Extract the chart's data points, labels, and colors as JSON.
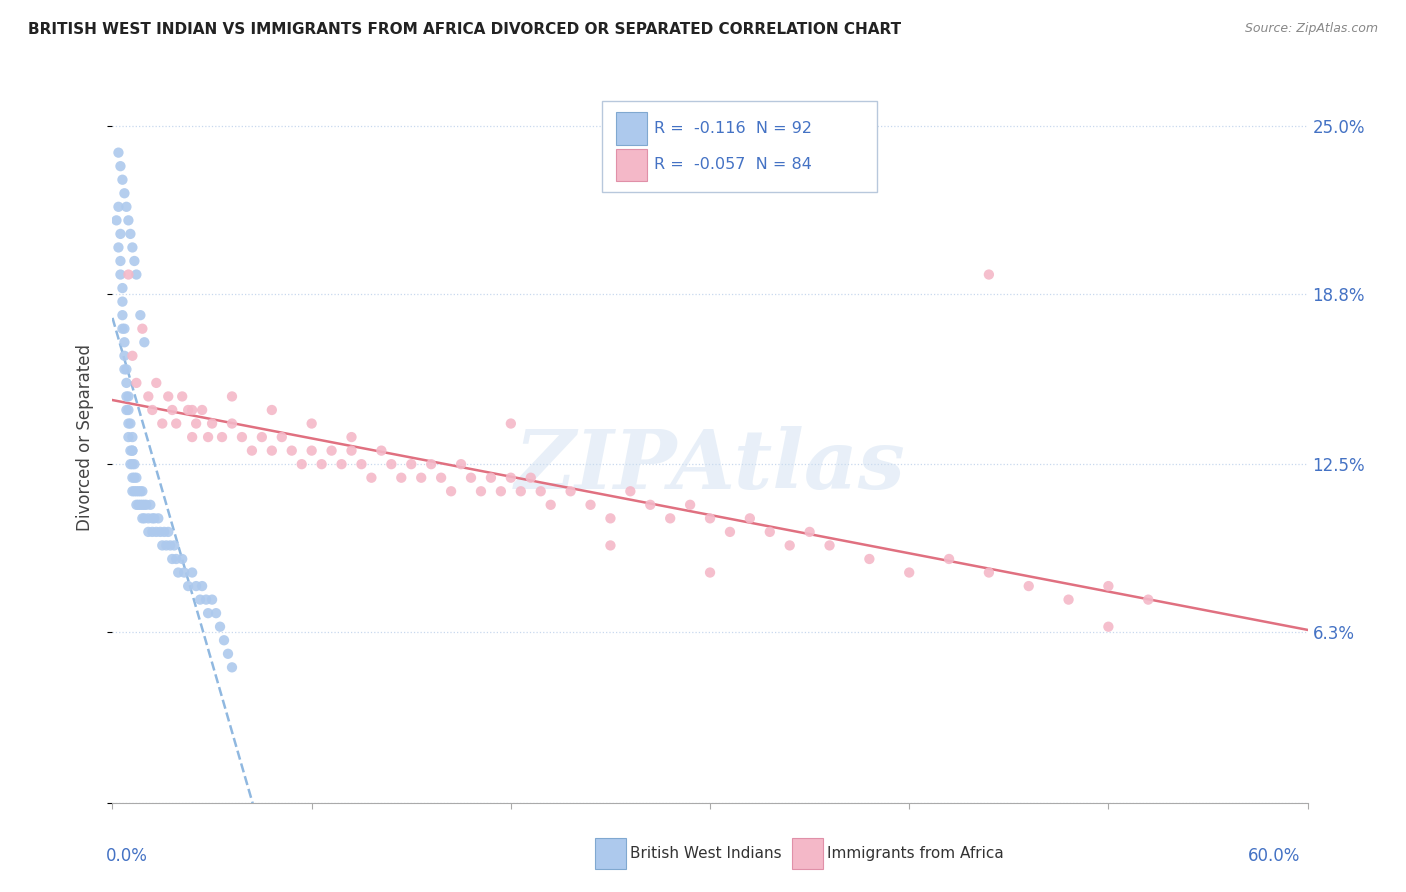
{
  "title": "BRITISH WEST INDIAN VS IMMIGRANTS FROM AFRICA DIVORCED OR SEPARATED CORRELATION CHART",
  "source": "Source: ZipAtlas.com",
  "ylabel": "Divorced or Separated",
  "yticks": [
    0.0,
    0.063,
    0.125,
    0.188,
    0.25
  ],
  "ytick_labels": [
    "",
    "6.3%",
    "12.5%",
    "18.8%",
    "25.0%"
  ],
  "xlim": [
    0.0,
    0.6
  ],
  "ylim": [
    0.0,
    0.27
  ],
  "watermark": "ZIPAtlas",
  "blue_R": "-0.116",
  "blue_N": "92",
  "pink_R": "-0.057",
  "pink_N": "84",
  "blue_color": "#adc9ed",
  "pink_color": "#f4b8c8",
  "legend_label_blue": "British West Indians",
  "legend_label_pink": "Immigrants from Africa",
  "blue_scatter_x": [
    0.002,
    0.003,
    0.003,
    0.004,
    0.004,
    0.004,
    0.005,
    0.005,
    0.005,
    0.005,
    0.006,
    0.006,
    0.006,
    0.006,
    0.007,
    0.007,
    0.007,
    0.007,
    0.008,
    0.008,
    0.008,
    0.008,
    0.009,
    0.009,
    0.009,
    0.01,
    0.01,
    0.01,
    0.01,
    0.01,
    0.01,
    0.011,
    0.011,
    0.011,
    0.012,
    0.012,
    0.012,
    0.013,
    0.013,
    0.014,
    0.014,
    0.015,
    0.015,
    0.015,
    0.016,
    0.016,
    0.017,
    0.018,
    0.018,
    0.019,
    0.02,
    0.02,
    0.021,
    0.022,
    0.023,
    0.024,
    0.025,
    0.026,
    0.027,
    0.028,
    0.029,
    0.03,
    0.031,
    0.032,
    0.033,
    0.035,
    0.036,
    0.038,
    0.04,
    0.042,
    0.044,
    0.045,
    0.047,
    0.048,
    0.05,
    0.052,
    0.054,
    0.056,
    0.058,
    0.06,
    0.003,
    0.004,
    0.005,
    0.006,
    0.007,
    0.008,
    0.009,
    0.01,
    0.011,
    0.012,
    0.014,
    0.016
  ],
  "blue_scatter_y": [
    0.215,
    0.22,
    0.205,
    0.21,
    0.2,
    0.195,
    0.19,
    0.18,
    0.175,
    0.185,
    0.17,
    0.165,
    0.16,
    0.175,
    0.155,
    0.15,
    0.16,
    0.145,
    0.14,
    0.15,
    0.135,
    0.145,
    0.13,
    0.14,
    0.125,
    0.135,
    0.13,
    0.125,
    0.12,
    0.13,
    0.115,
    0.12,
    0.125,
    0.115,
    0.12,
    0.115,
    0.11,
    0.115,
    0.11,
    0.115,
    0.11,
    0.115,
    0.11,
    0.105,
    0.11,
    0.105,
    0.11,
    0.105,
    0.1,
    0.11,
    0.105,
    0.1,
    0.105,
    0.1,
    0.105,
    0.1,
    0.095,
    0.1,
    0.095,
    0.1,
    0.095,
    0.09,
    0.095,
    0.09,
    0.085,
    0.09,
    0.085,
    0.08,
    0.085,
    0.08,
    0.075,
    0.08,
    0.075,
    0.07,
    0.075,
    0.07,
    0.065,
    0.06,
    0.055,
    0.05,
    0.24,
    0.235,
    0.23,
    0.225,
    0.22,
    0.215,
    0.21,
    0.205,
    0.2,
    0.195,
    0.18,
    0.17
  ],
  "pink_scatter_x": [
    0.008,
    0.01,
    0.012,
    0.015,
    0.018,
    0.02,
    0.022,
    0.025,
    0.028,
    0.03,
    0.032,
    0.035,
    0.038,
    0.04,
    0.042,
    0.045,
    0.048,
    0.05,
    0.055,
    0.06,
    0.065,
    0.07,
    0.075,
    0.08,
    0.085,
    0.09,
    0.095,
    0.1,
    0.105,
    0.11,
    0.115,
    0.12,
    0.125,
    0.13,
    0.135,
    0.14,
    0.145,
    0.15,
    0.155,
    0.16,
    0.165,
    0.17,
    0.175,
    0.18,
    0.185,
    0.19,
    0.195,
    0.2,
    0.205,
    0.21,
    0.215,
    0.22,
    0.23,
    0.24,
    0.25,
    0.26,
    0.27,
    0.28,
    0.29,
    0.3,
    0.31,
    0.32,
    0.33,
    0.34,
    0.35,
    0.36,
    0.38,
    0.4,
    0.42,
    0.44,
    0.46,
    0.48,
    0.5,
    0.52,
    0.04,
    0.06,
    0.08,
    0.1,
    0.12,
    0.2,
    0.25,
    0.3,
    0.5,
    0.44
  ],
  "pink_scatter_y": [
    0.195,
    0.165,
    0.155,
    0.175,
    0.15,
    0.145,
    0.155,
    0.14,
    0.15,
    0.145,
    0.14,
    0.15,
    0.145,
    0.135,
    0.14,
    0.145,
    0.135,
    0.14,
    0.135,
    0.14,
    0.135,
    0.13,
    0.135,
    0.13,
    0.135,
    0.13,
    0.125,
    0.13,
    0.125,
    0.13,
    0.125,
    0.13,
    0.125,
    0.12,
    0.13,
    0.125,
    0.12,
    0.125,
    0.12,
    0.125,
    0.12,
    0.115,
    0.125,
    0.12,
    0.115,
    0.12,
    0.115,
    0.12,
    0.115,
    0.12,
    0.115,
    0.11,
    0.115,
    0.11,
    0.105,
    0.115,
    0.11,
    0.105,
    0.11,
    0.105,
    0.1,
    0.105,
    0.1,
    0.095,
    0.1,
    0.095,
    0.09,
    0.085,
    0.09,
    0.085,
    0.08,
    0.075,
    0.08,
    0.075,
    0.145,
    0.15,
    0.145,
    0.14,
    0.135,
    0.14,
    0.095,
    0.085,
    0.065,
    0.195
  ]
}
